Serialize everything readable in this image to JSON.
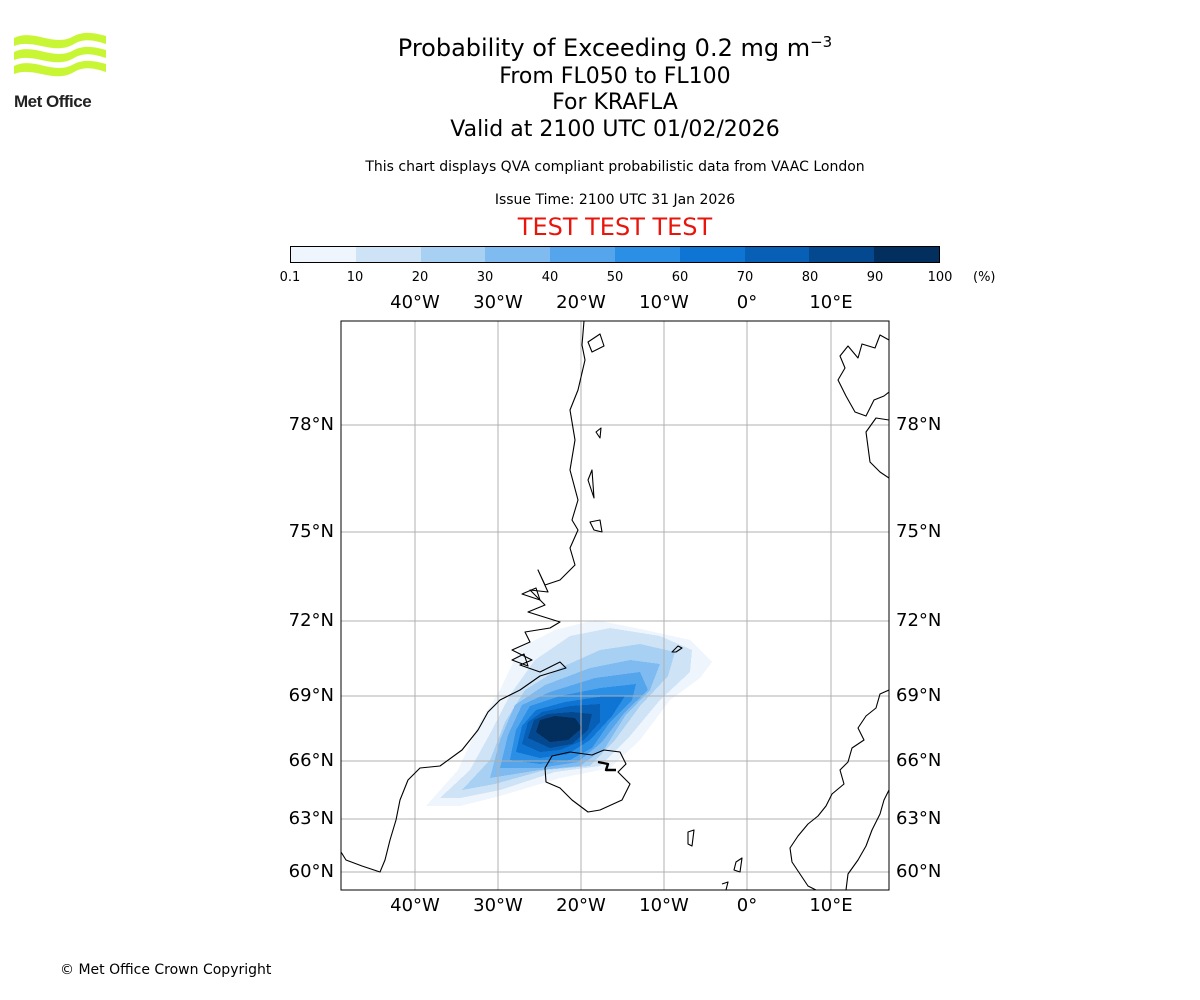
{
  "logo": {
    "text": "Met Office",
    "color": "#c8f534"
  },
  "header": {
    "title_main": "Probability of Exceeding 0.2 mg m",
    "title_sup": "−3",
    "altitude": "From FL050 to FL100",
    "volcano": "For KRAFLA",
    "valid": "Valid at 2100 UTC 01/02/2026",
    "description": "This chart displays QVA compliant probabilistic data from VAAC London",
    "issue_time": "Issue Time: 2100 UTC 31 Jan 2026",
    "test_banner": "TEST TEST TEST"
  },
  "colorbar": {
    "ticks": [
      "0.1",
      "10",
      "20",
      "30",
      "40",
      "50",
      "60",
      "70",
      "80",
      "90",
      "100"
    ],
    "units": "(%)",
    "colors": [
      "#eef5fd",
      "#cfe3f7",
      "#a8d0f3",
      "#7fbbf0",
      "#55a5ec",
      "#2b8fe6",
      "#0e75d4",
      "#0760b5",
      "#04498f",
      "#022f5e"
    ]
  },
  "map": {
    "lon_labels": [
      "40°W",
      "30°W",
      "20°W",
      "10°W",
      "0°",
      "10°E"
    ],
    "lat_labels": [
      "78°N",
      "75°N",
      "72°N",
      "69°N",
      "66°N",
      "63°N",
      "60°N"
    ]
  },
  "footer": {
    "copyright": "© Met Office Crown Copyright"
  }
}
